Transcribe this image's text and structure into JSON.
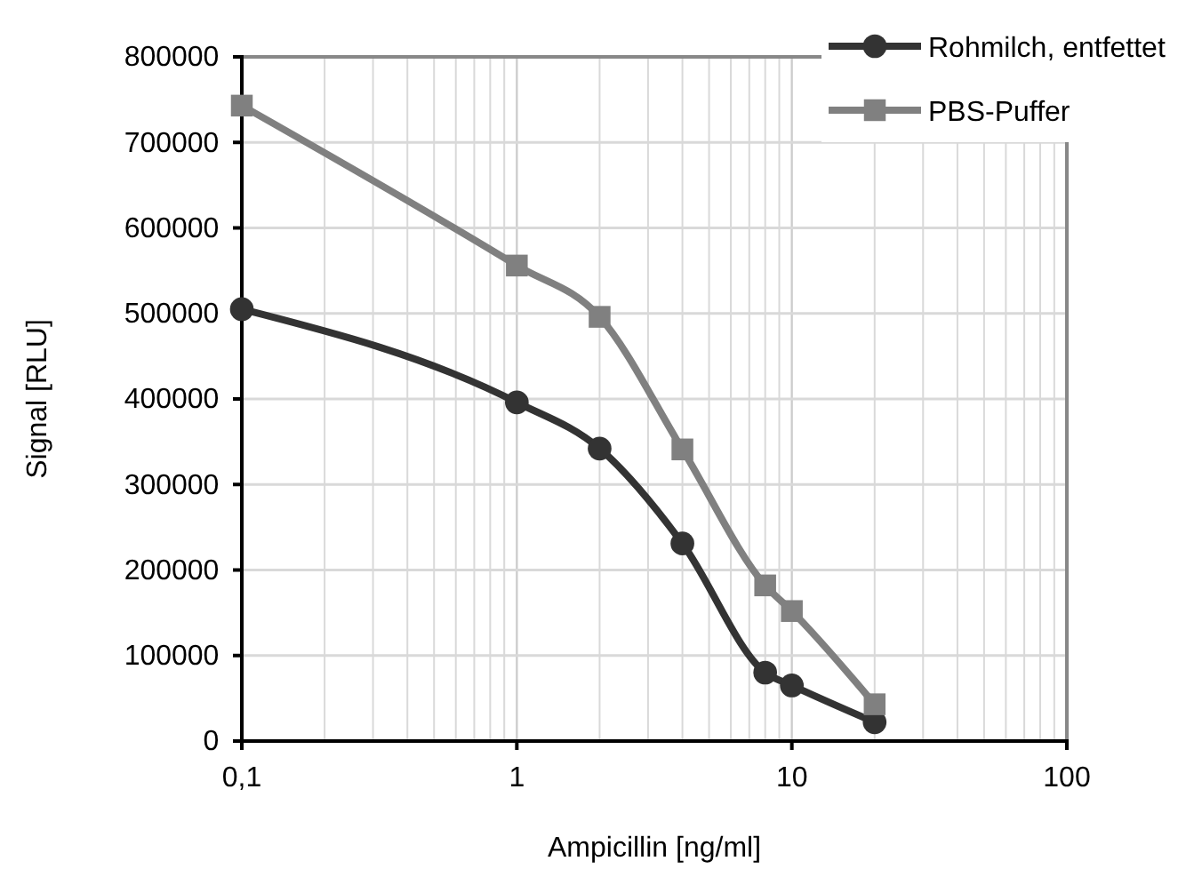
{
  "chart_data": {
    "type": "line",
    "xlabel": "Ampicillin [ng/ml]",
    "ylabel": "Signal [RLU]",
    "x": [
      0.1,
      1,
      2,
      4,
      8,
      10,
      20
    ],
    "series": [
      {
        "name": "Rohmilch, entfettet",
        "color": "#333333",
        "marker": "circle",
        "values": [
          505000,
          396000,
          342000,
          231000,
          80000,
          65000,
          22000
        ]
      },
      {
        "name": "PBS-Puffer",
        "color": "#808080",
        "marker": "square",
        "values": [
          743000,
          556000,
          496000,
          341000,
          182000,
          152000,
          43000
        ]
      }
    ],
    "log": "x",
    "xlim": [
      0.1,
      100
    ],
    "xticks": [
      {
        "value": 0.1,
        "label": "0,1"
      },
      1,
      10,
      100
    ],
    "ylim": [
      0,
      800000
    ],
    "yticks": [
      0,
      100000,
      200000,
      300000,
      400000,
      500000,
      600000,
      700000,
      800000
    ],
    "grid": true,
    "legend": "top right"
  }
}
